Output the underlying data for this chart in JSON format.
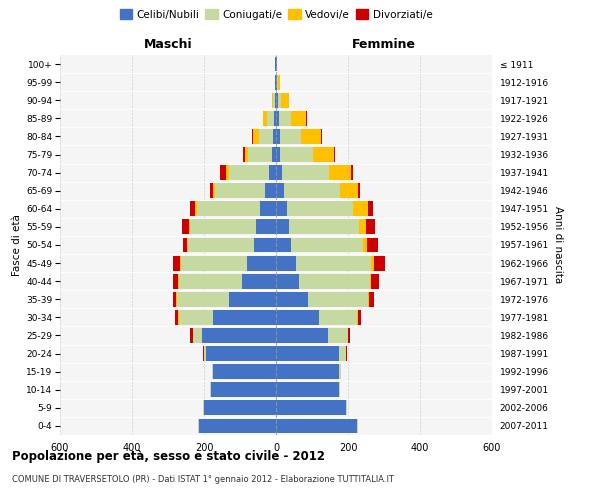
{
  "age_groups": [
    "0-4",
    "5-9",
    "10-14",
    "15-19",
    "20-24",
    "25-29",
    "30-34",
    "35-39",
    "40-44",
    "45-49",
    "50-54",
    "55-59",
    "60-64",
    "65-69",
    "70-74",
    "75-79",
    "80-84",
    "85-89",
    "90-94",
    "95-99",
    "100+"
  ],
  "birth_years": [
    "2007-2011",
    "2002-2006",
    "1997-2001",
    "1992-1996",
    "1987-1991",
    "1982-1986",
    "1977-1981",
    "1972-1976",
    "1967-1971",
    "1962-1966",
    "1957-1961",
    "1952-1956",
    "1947-1951",
    "1942-1946",
    "1937-1941",
    "1932-1936",
    "1927-1931",
    "1922-1926",
    "1917-1921",
    "1912-1916",
    "≤ 1911"
  ],
  "colors": {
    "celibi": "#4472c4",
    "coniugati": "#c5d9a0",
    "vedovi": "#ffc000",
    "divorziati": "#cc0000"
  },
  "maschi": {
    "celibi": [
      215,
      200,
      180,
      175,
      195,
      205,
      175,
      130,
      95,
      80,
      60,
      55,
      45,
      30,
      20,
      12,
      8,
      5,
      3,
      2,
      2
    ],
    "coniugati": [
      2,
      2,
      2,
      2,
      5,
      25,
      95,
      145,
      175,
      185,
      185,
      185,
      175,
      140,
      110,
      65,
      40,
      20,
      5,
      1,
      0
    ],
    "vedovi": [
      0,
      0,
      0,
      0,
      0,
      1,
      1,
      2,
      2,
      2,
      2,
      3,
      5,
      5,
      10,
      10,
      15,
      10,
      4,
      1,
      0
    ],
    "divorziati": [
      0,
      0,
      0,
      0,
      2,
      8,
      10,
      10,
      15,
      20,
      12,
      18,
      15,
      8,
      15,
      5,
      3,
      2,
      0,
      0,
      0
    ]
  },
  "femmine": {
    "celibi": [
      225,
      195,
      175,
      175,
      175,
      145,
      120,
      90,
      65,
      55,
      42,
      35,
      30,
      22,
      18,
      12,
      10,
      8,
      5,
      3,
      2
    ],
    "coniugati": [
      2,
      2,
      2,
      5,
      20,
      55,
      105,
      165,
      195,
      210,
      200,
      195,
      185,
      155,
      130,
      90,
      60,
      35,
      10,
      2,
      0
    ],
    "vedovi": [
      0,
      0,
      0,
      0,
      0,
      1,
      2,
      3,
      5,
      8,
      12,
      20,
      40,
      50,
      60,
      60,
      55,
      40,
      20,
      5,
      2
    ],
    "divorziati": [
      0,
      0,
      0,
      0,
      2,
      5,
      10,
      15,
      20,
      30,
      30,
      25,
      15,
      5,
      5,
      3,
      3,
      2,
      0,
      0,
      0
    ]
  },
  "title": "Popolazione per età, sesso e stato civile - 2012",
  "subtitle": "COMUNE DI TRAVERSETOLO (PR) - Dati ISTAT 1° gennaio 2012 - Elaborazione TUTTITALIA.IT",
  "xlabel_left": "Maschi",
  "xlabel_right": "Femmine",
  "ylabel_left": "Fasce di età",
  "ylabel_right": "Anni di nascita",
  "xlim": 600,
  "legend_labels": [
    "Celibi/Nubili",
    "Coniugati/e",
    "Vedovi/e",
    "Divorziati/e"
  ],
  "bg_color": "#ffffff",
  "grid_color": "#cccccc"
}
